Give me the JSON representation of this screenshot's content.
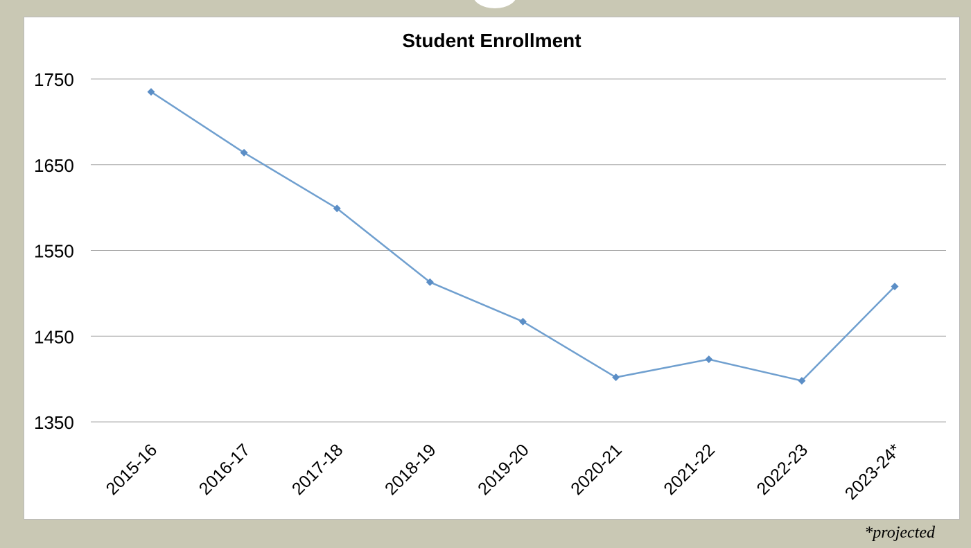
{
  "chart_data": {
    "type": "line",
    "title": "Student Enrollment",
    "xlabel": "",
    "ylabel": "",
    "categories": [
      "2015-16",
      "2016-17",
      "2017-18",
      "2018-19",
      "2019-20",
      "2020-21",
      "2021-22",
      "2022-23",
      "2023-24*"
    ],
    "series": [
      {
        "values": [
          1735,
          1664,
          1599,
          1513,
          1467,
          1402,
          1423,
          1398,
          1508
        ]
      }
    ],
    "ylim": [
      1350,
      1750
    ],
    "yticks": [
      1350,
      1450,
      1550,
      1650,
      1750
    ],
    "grid": true,
    "legend": "none",
    "colors": {
      "line": "#6f9fcf",
      "marker": "#5b8ec6",
      "grid": "#a6a6a6"
    }
  },
  "footnote": "*projected"
}
